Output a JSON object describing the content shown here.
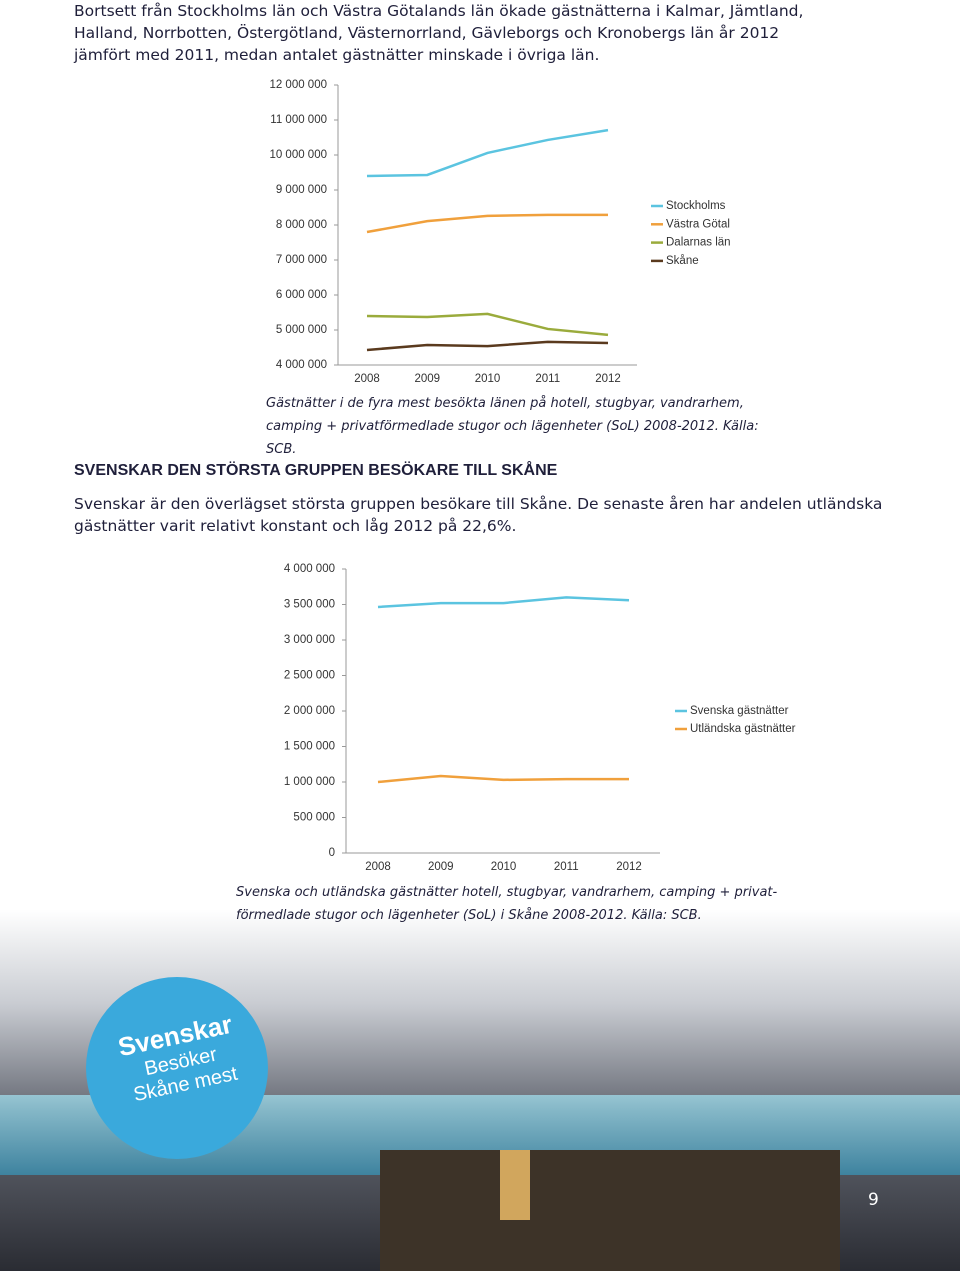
{
  "paragraphs": [
    "Bortsett från Stockholms län och Västra Götalands län ökade gästnätterna i Kalmar, Jämtland, Halland, Norrbotten, Östergötland, Västernorrland, Gävleborgs och Kronobergs län år 2012 jämfört med 2011, medan antalet gästnätter minskade i övriga län.",
    "Svenskar är den överlägset största gruppen besökare till Skåne. De senaste åren har andelen utländska gästnätter varit relativt konstant och låg 2012 på 22,6%."
  ],
  "heading": "SVENSKAR DEN STÖRSTA GRUPPEN BESÖKARE TILL SKÅNE",
  "captions": [
    "Gästnätter i de fyra mest besökta länen på hotell, stugbyar, vandrarhem, camping + privatförmedlade stugor och lägenheter (SoL) 2008-2012. Källa: SCB.",
    "Svenska och utländska gästnätter hotell, stugbyar, vandrarhem, camping + privat-förmedlade stugor och lägenheter (SoL) i Skåne 2008-2012. Källa: SCB."
  ],
  "badge": [
    "Svenskar",
    "Besöker",
    "Skåne mest"
  ],
  "page_number": "9",
  "chart_data": [
    {
      "type": "line",
      "categories": [
        "2008",
        "2009",
        "2010",
        "2011",
        "2012"
      ],
      "ylim": [
        4000000,
        12000000
      ],
      "yticks": [
        {
          "value": 4000000,
          "label": "4 000 000"
        },
        {
          "value": 5000000,
          "label": "5 000 000"
        },
        {
          "value": 6000000,
          "label": "6 000 000"
        },
        {
          "value": 7000000,
          "label": "7 000 000"
        },
        {
          "value": 8000000,
          "label": "8 000 000"
        },
        {
          "value": 9000000,
          "label": "9 000 000"
        },
        {
          "value": 10000000,
          "label": "10 000 000"
        },
        {
          "value": 11000000,
          "label": "11 000 000"
        },
        {
          "value": 12000000,
          "label": "12 000 000"
        }
      ],
      "series": [
        {
          "name": "Stockholms",
          "color": "#5bc4e0",
          "values": [
            9400000,
            9430000,
            10060000,
            10430000,
            10710000
          ]
        },
        {
          "name": "Västra Götal",
          "color": "#f0a03c",
          "values": [
            7800000,
            8110000,
            8260000,
            8290000,
            8290000
          ]
        },
        {
          "name": "Dalarnas län",
          "color": "#9aab3c",
          "values": [
            5400000,
            5370000,
            5460000,
            5030000,
            4860000
          ]
        },
        {
          "name": "Skåne",
          "color": "#5a3a1e",
          "values": [
            4430000,
            4570000,
            4540000,
            4660000,
            4630000
          ]
        }
      ]
    },
    {
      "type": "line",
      "categories": [
        "2008",
        "2009",
        "2010",
        "2011",
        "2012"
      ],
      "ylim": [
        0,
        4000000
      ],
      "yticks": [
        0,
        {
          "value": 500000,
          "label": "500 000"
        },
        {
          "value": 1000000,
          "label": "1 000 000"
        },
        {
          "value": 1500000,
          "label": "1 500 000"
        },
        {
          "value": 2000000,
          "label": "2 000 000"
        },
        {
          "value": 2500000,
          "label": "2 500 000"
        },
        {
          "value": 3000000,
          "label": "3 000 000"
        },
        {
          "value": 3500000,
          "label": "3 500 000"
        },
        {
          "value": 4000000,
          "label": "4 000 000"
        }
      ],
      "series": [
        {
          "name": "Svenska gästnätter",
          "color": "#5bc4e0",
          "values": [
            3465000,
            3520000,
            3520000,
            3600000,
            3560000
          ]
        },
        {
          "name": "Utländska gästnätter",
          "color": "#f0a03c",
          "values": [
            1000000,
            1085000,
            1030000,
            1040000,
            1040000
          ]
        }
      ]
    }
  ]
}
